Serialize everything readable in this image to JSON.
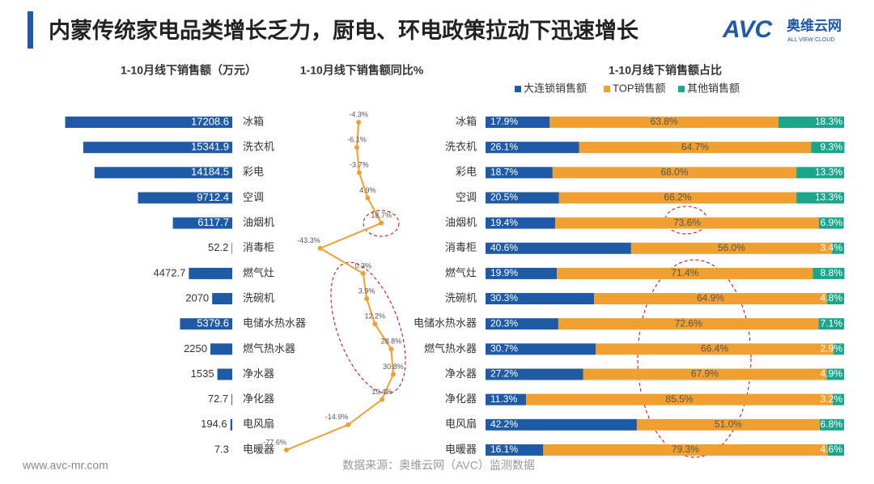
{
  "header": {
    "title": "内蒙传统家电品类增长乏力，厨电、环电政策拉动下迅速增长",
    "logo": "AVC",
    "logo_cn": "奥维云网",
    "logo_en": "ALL VIEW CLOUD"
  },
  "footer": {
    "website": "www.avc-mr.com",
    "source": "数据来源：奥维云网（AVC）监测数据"
  },
  "chart_data": [
    {
      "type": "bar",
      "title": "1-10月线下销售额（万元）",
      "color": "#1f5aa6",
      "xlim": [
        0,
        17500
      ],
      "categories": [
        "冰箱",
        "洗衣机",
        "彩电",
        "空调",
        "油烟机",
        "消毒柜",
        "燃气灶",
        "洗碗机",
        "电储水热水器",
        "燃气热水器",
        "净水器",
        "净化器",
        "电风扇",
        "电暖器"
      ],
      "values": [
        17208.6,
        15341.9,
        14184.5,
        9712.4,
        6117.7,
        52.2,
        4472.7,
        2070,
        5379.6,
        2250,
        1535,
        72.7,
        194.6,
        7.3
      ]
    },
    {
      "type": "line",
      "title": "1-10月线下销售额同比%",
      "color": "#f0a030",
      "xlim": [
        -80,
        35
      ],
      "values": [
        -4.3,
        -6.1,
        -3.7,
        4.9,
        18.7,
        -43.3,
        0.3,
        3.9,
        12.2,
        28.8,
        30.8,
        19.4,
        -14.9,
        -77.6
      ],
      "value_labels": [
        "-4.3%",
        "-6.1%",
        "-3.7%",
        "4.9%",
        "18.7%",
        "-43.3%",
        "0.3%",
        "3.9%",
        "12.2%",
        "28.8%",
        "30.8%",
        "19.4%",
        "-14.9%",
        "-77.6%"
      ]
    },
    {
      "type": "stacked_bar",
      "title": "1-10月线下销售额占比",
      "xlim": [
        0,
        100
      ],
      "categories": [
        "冰箱",
        "洗衣机",
        "彩电",
        "空调",
        "油烟机",
        "消毒柜",
        "燃气灶",
        "洗碗机",
        "电储水热水器",
        "燃气热水器",
        "净水器",
        "净化器",
        "电风扇",
        "电暖器"
      ],
      "series": [
        {
          "name": "大连锁销售额",
          "color": "#1f5aa6",
          "values": [
            17.9,
            26.1,
            18.7,
            20.5,
            19.4,
            40.6,
            19.9,
            30.3,
            20.3,
            30.7,
            27.2,
            11.3,
            42.2,
            16.1
          ],
          "value_labels": [
            "17.9%",
            "26.1%",
            "18.7%",
            "20.5%",
            "19.4%",
            "40.6%",
            "19.9%",
            "30.3%",
            "20.3%",
            "30.7%",
            "27.2%",
            "11.3%",
            "42.2%",
            "16.1%"
          ]
        },
        {
          "name": "TOP销售额",
          "color": "#f0a030",
          "values": [
            63.8,
            64.7,
            68.0,
            66.2,
            73.6,
            56.0,
            71.4,
            64.9,
            72.6,
            66.4,
            67.9,
            85.5,
            51.0,
            79.3
          ],
          "value_labels": [
            "63.8%",
            "64.7%",
            "68.0%",
            "66.2%",
            "73.6%",
            "56.0%",
            "71.4%",
            "64.9%",
            "72.6%",
            "66.4%",
            "67.9%",
            "85.5%",
            "51.0%",
            "79.3%"
          ]
        },
        {
          "name": "其他销售额",
          "color": "#1ba68c",
          "values": [
            18.3,
            9.3,
            13.3,
            13.3,
            6.9,
            3.4,
            8.8,
            4.8,
            7.1,
            2.9,
            4.9,
            3.2,
            6.8,
            4.6
          ],
          "value_labels": [
            "18.3%",
            "9.3%",
            "13.3%",
            "13.3%",
            "6.9%",
            "3.4%",
            "8.8%",
            "4.8%",
            "7.1%",
            "2.9%",
            "4.9%",
            "3.2%",
            "6.8%",
            "4.6%"
          ]
        }
      ]
    }
  ]
}
